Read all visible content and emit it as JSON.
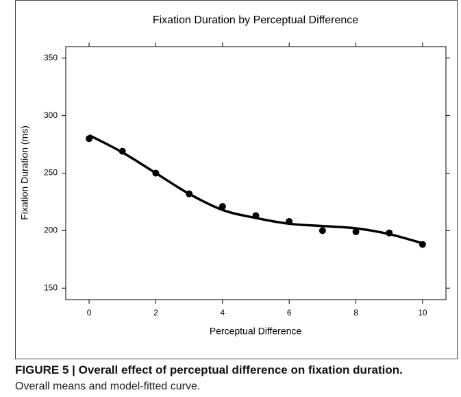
{
  "chart_data": {
    "type": "scatter",
    "title": "Fixation Duration by Perceptual Difference",
    "xlabel": "Perceptual Difference",
    "ylabel": "Fixation Duration (ms)",
    "x": [
      0,
      1,
      2,
      3,
      4,
      5,
      6,
      7,
      8,
      9,
      10
    ],
    "series": [
      {
        "type": "scatter",
        "color": "#000000",
        "values": [
          280,
          269,
          250,
          232,
          221,
          213,
          208,
          200,
          199,
          198,
          188
        ]
      },
      {
        "type": "line",
        "color": "#000000",
        "values": [
          283,
          268,
          250,
          232,
          218,
          211,
          206,
          204,
          202,
          197,
          189
        ]
      }
    ],
    "xlim": [
      -0.7,
      10.7
    ],
    "xticks": [
      0,
      2,
      4,
      6,
      8,
      10
    ],
    "ylim": [
      140,
      360
    ],
    "yticks": [
      150,
      200,
      250,
      300,
      350
    ]
  },
  "caption": {
    "title": "FIGURE 5 | Overall effect of perceptual difference on fixation duration.",
    "text": "Overall means and model-fitted curve."
  }
}
